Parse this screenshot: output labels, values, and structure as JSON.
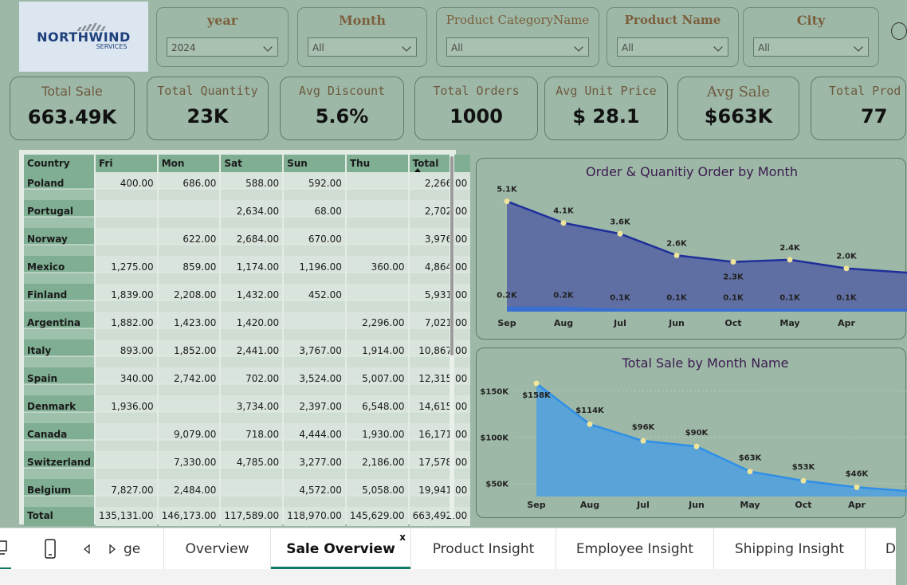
{
  "logo": {
    "name": "NORTHWIND",
    "sub": "SERVICES"
  },
  "slicers": [
    {
      "title": "year",
      "value": "2024"
    },
    {
      "title": "Month",
      "value": "All"
    },
    {
      "title": "Product CategoryName",
      "value": "All"
    },
    {
      "title": "Product Name",
      "value": "All"
    },
    {
      "title": "City",
      "value": "All"
    }
  ],
  "kpis": [
    {
      "title": "Total Sale",
      "value": "663.49K"
    },
    {
      "title": "Total Quantity",
      "value": "23K"
    },
    {
      "title": "Avg Discount",
      "value": "5.6%"
    },
    {
      "title": "Total Orders",
      "value": "1000"
    },
    {
      "title": "Avg Unit Price",
      "value": "$ 28.1"
    },
    {
      "title": "Avg Sale",
      "value": "$663K"
    },
    {
      "title": "Total Prod",
      "value": "77"
    }
  ],
  "table": {
    "headers": [
      "Country",
      "Fri",
      "Mon",
      "Sat",
      "Sun",
      "Thu",
      "Total"
    ],
    "rows": [
      [
        "Poland",
        "400.00",
        "686.00",
        "588.00",
        "592.00",
        "",
        "2,266.00"
      ],
      [
        "Portugal",
        "",
        "",
        "2,634.00",
        "68.00",
        "",
        "2,702.00"
      ],
      [
        "Norway",
        "",
        "622.00",
        "2,684.00",
        "670.00",
        "",
        "3,976.00"
      ],
      [
        "Mexico",
        "1,275.00",
        "859.00",
        "1,174.00",
        "1,196.00",
        "360.00",
        "4,864.00"
      ],
      [
        "Finland",
        "1,839.00",
        "2,208.00",
        "1,432.00",
        "452.00",
        "",
        "5,931.00"
      ],
      [
        "Argentina",
        "1,882.00",
        "1,423.00",
        "1,420.00",
        "",
        "2,296.00",
        "7,021.00"
      ],
      [
        "Italy",
        "893.00",
        "1,852.00",
        "2,441.00",
        "3,767.00",
        "1,914.00",
        "10,867.00"
      ],
      [
        "Spain",
        "340.00",
        "2,742.00",
        "702.00",
        "3,524.00",
        "5,007.00",
        "12,315.00"
      ],
      [
        "Denmark",
        "1,936.00",
        "",
        "3,734.00",
        "2,397.00",
        "6,548.00",
        "14,615.00"
      ],
      [
        "Canada",
        "",
        "9,079.00",
        "718.00",
        "4,444.00",
        "1,930.00",
        "16,171.00"
      ],
      [
        "Switzerland",
        "",
        "7,330.00",
        "4,785.00",
        "3,277.00",
        "2,186.00",
        "17,578.00"
      ],
      [
        "Belgium",
        "7,827.00",
        "2,484.00",
        "",
        "4,572.00",
        "5,058.00",
        "19,941.00"
      ]
    ],
    "total": [
      "Total",
      "135,131.00",
      "146,173.00",
      "117,589.00",
      "118,970.00",
      "145,629.00",
      "663,492.00"
    ]
  },
  "chart_data": [
    {
      "type": "area",
      "title": "Order & Quanitiy Order by Month",
      "categories": [
        "Sep",
        "Aug",
        "Jul",
        "Jun",
        "Oct",
        "May",
        "Apr"
      ],
      "series": [
        {
          "values": [
            5.1,
            4.1,
            3.6,
            2.6,
            2.3,
            2.4,
            2.0
          ],
          "labels": [
            "5.1K",
            "4.1K",
            "3.6K",
            "2.6K",
            "2.3K",
            "2.4K",
            "2.0K"
          ]
        },
        {
          "values": [
            0.2,
            0.2,
            0.1,
            0.1,
            0.1,
            0.1,
            0.1
          ],
          "labels": [
            "0.2K",
            "0.2K",
            "0.1K",
            "0.1K",
            "0.1K",
            "0.1K",
            "0.1K"
          ]
        }
      ],
      "ylim": [
        0,
        5.6
      ],
      "color_main": "#5f6fa3",
      "line_main": "#1f2f9a",
      "color_second": "#3a6fd0"
    },
    {
      "type": "area",
      "title": "Total Sale by Month Name",
      "categories": [
        "Sep",
        "Aug",
        "Jul",
        "Jun",
        "May",
        "Oct",
        "Apr"
      ],
      "series": [
        {
          "values": [
            158,
            114,
            96,
            90,
            63,
            53,
            46
          ],
          "labels": [
            "$158K",
            "$114K",
            "$96K",
            "$90K",
            "$63K",
            "$53K",
            "$46K"
          ]
        }
      ],
      "yticks": [
        "$50K",
        "$100K",
        "$150K"
      ],
      "ytick_values": [
        50,
        100,
        150
      ],
      "ylim": [
        36,
        170
      ],
      "color_main": "#5aa3d8",
      "line_main": "#2f8fe6"
    }
  ],
  "tabs": [
    {
      "label": "ge"
    },
    {
      "label": "Overview"
    },
    {
      "label": "Sale Overview",
      "active": true,
      "close": "x"
    },
    {
      "label": "Product Insight"
    },
    {
      "label": "Employee Insight"
    },
    {
      "label": "Shipping Insight"
    },
    {
      "label": "D"
    }
  ]
}
